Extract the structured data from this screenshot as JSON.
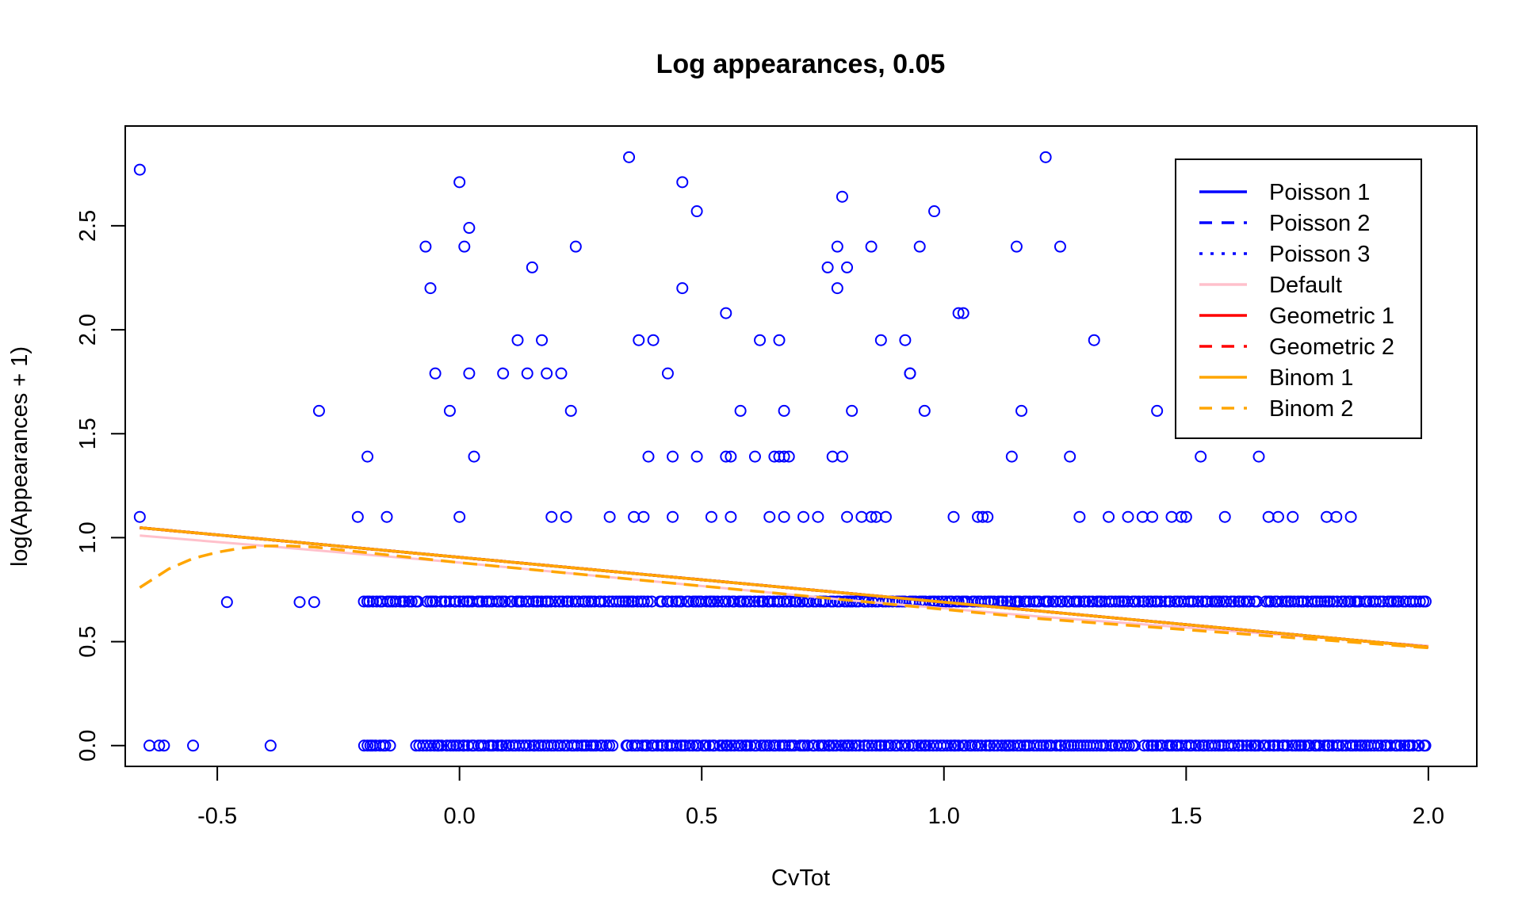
{
  "chart_data": {
    "type": "scatter",
    "title": "Log appearances,  0.05",
    "xlabel": "CvTot",
    "ylabel": "log(Appearances + 1)",
    "xlim": [
      -0.69,
      2.1
    ],
    "ylim": [
      -0.1,
      2.98
    ],
    "xticks": [
      -0.5,
      0.0,
      0.5,
      1.0,
      1.5,
      2.0
    ],
    "xtick_labels": [
      "-0.5",
      "0.0",
      "0.5",
      "1.0",
      "1.5",
      "2.0"
    ],
    "yticks": [
      0.0,
      0.5,
      1.0,
      1.5,
      2.0,
      2.5
    ],
    "ytick_labels": [
      "0.0",
      "0.5",
      "1.0",
      "1.5",
      "2.0",
      "2.5"
    ],
    "grid": false,
    "legend_position": "top-right",
    "point_color": "#0000ff",
    "points": [
      [
        -0.66,
        2.77
      ],
      [
        -0.66,
        1.1
      ],
      [
        -0.64,
        0.0
      ],
      [
        -0.62,
        0.0
      ],
      [
        -0.61,
        0.0
      ],
      [
        -0.55,
        0.0
      ],
      [
        -0.48,
        0.69
      ],
      [
        -0.39,
        0.0
      ],
      [
        -0.33,
        0.69
      ],
      [
        -0.3,
        0.69
      ],
      [
        -0.29,
        1.61
      ],
      [
        -0.21,
        1.1
      ],
      [
        -0.19,
        1.39
      ],
      [
        -0.15,
        1.1
      ],
      [
        -0.07,
        2.4
      ],
      [
        -0.06,
        2.2
      ],
      [
        -0.05,
        1.79
      ],
      [
        -0.02,
        1.61
      ],
      [
        0.0,
        2.71
      ],
      [
        0.0,
        1.1
      ],
      [
        0.01,
        2.4
      ],
      [
        0.02,
        2.49
      ],
      [
        0.02,
        1.79
      ],
      [
        0.03,
        1.39
      ],
      [
        0.09,
        1.79
      ],
      [
        0.12,
        1.95
      ],
      [
        0.14,
        1.79
      ],
      [
        0.15,
        2.3
      ],
      [
        0.17,
        1.95
      ],
      [
        0.18,
        1.79
      ],
      [
        0.19,
        1.1
      ],
      [
        0.21,
        1.79
      ],
      [
        0.22,
        1.1
      ],
      [
        0.23,
        1.61
      ],
      [
        0.24,
        2.4
      ],
      [
        0.31,
        1.1
      ],
      [
        0.35,
        2.83
      ],
      [
        0.36,
        1.1
      ],
      [
        0.37,
        1.95
      ],
      [
        0.38,
        1.1
      ],
      [
        0.39,
        1.39
      ],
      [
        0.4,
        1.95
      ],
      [
        0.43,
        1.79
      ],
      [
        0.44,
        1.39
      ],
      [
        0.44,
        1.1
      ],
      [
        0.46,
        2.71
      ],
      [
        0.46,
        2.2
      ],
      [
        0.49,
        2.57
      ],
      [
        0.49,
        1.39
      ],
      [
        0.52,
        1.1
      ],
      [
        0.55,
        2.08
      ],
      [
        0.55,
        1.39
      ],
      [
        0.56,
        1.39
      ],
      [
        0.56,
        1.1
      ],
      [
        0.58,
        1.61
      ],
      [
        0.61,
        1.39
      ],
      [
        0.62,
        1.95
      ],
      [
        0.64,
        1.1
      ],
      [
        0.65,
        1.39
      ],
      [
        0.66,
        1.39
      ],
      [
        0.66,
        1.95
      ],
      [
        0.67,
        1.1
      ],
      [
        0.67,
        1.61
      ],
      [
        0.67,
        1.39
      ],
      [
        0.68,
        1.39
      ],
      [
        0.71,
        1.1
      ],
      [
        0.74,
        1.1
      ],
      [
        0.76,
        2.3
      ],
      [
        0.77,
        1.39
      ],
      [
        0.78,
        2.4
      ],
      [
        0.78,
        2.2
      ],
      [
        0.79,
        1.39
      ],
      [
        0.79,
        2.64
      ],
      [
        0.8,
        2.3
      ],
      [
        0.8,
        1.1
      ],
      [
        0.81,
        1.61
      ],
      [
        0.83,
        1.1
      ],
      [
        0.85,
        2.4
      ],
      [
        0.85,
        1.1
      ],
      [
        0.86,
        1.1
      ],
      [
        0.87,
        1.95
      ],
      [
        0.88,
        1.1
      ],
      [
        0.92,
        1.95
      ],
      [
        0.93,
        1.79
      ],
      [
        0.93,
        1.79
      ],
      [
        0.95,
        2.4
      ],
      [
        0.96,
        1.61
      ],
      [
        0.98,
        2.57
      ],
      [
        1.02,
        1.1
      ],
      [
        1.03,
        2.08
      ],
      [
        1.04,
        2.08
      ],
      [
        1.07,
        1.1
      ],
      [
        1.08,
        1.1
      ],
      [
        1.09,
        1.1
      ],
      [
        1.14,
        1.39
      ],
      [
        1.15,
        2.4
      ],
      [
        1.16,
        1.61
      ],
      [
        1.21,
        2.83
      ],
      [
        1.24,
        2.4
      ],
      [
        1.26,
        1.39
      ],
      [
        1.28,
        1.1
      ],
      [
        1.31,
        1.95
      ],
      [
        1.34,
        1.1
      ],
      [
        1.38,
        1.1
      ],
      [
        1.41,
        1.1
      ],
      [
        1.43,
        1.1
      ],
      [
        1.44,
        1.61
      ],
      [
        1.47,
        1.1
      ],
      [
        1.49,
        1.1
      ],
      [
        1.5,
        1.1
      ],
      [
        1.53,
        1.39
      ],
      [
        1.58,
        1.1
      ],
      [
        1.65,
        1.39
      ],
      [
        1.67,
        1.1
      ],
      [
        1.69,
        1.1
      ],
      [
        1.72,
        1.1
      ],
      [
        1.79,
        1.1
      ],
      [
        1.81,
        1.1
      ],
      [
        1.84,
        1.1
      ]
    ],
    "dense_rows": [
      {
        "y": 0.693,
        "ranges": [
          [
            -0.2,
            -0.08
          ],
          [
            -0.07,
            0.4
          ],
          [
            0.41,
            1.65
          ],
          [
            1.66,
            2.0
          ]
        ],
        "count": 320
      },
      {
        "y": 0.0,
        "ranges": [
          [
            -0.2,
            -0.14
          ],
          [
            -0.09,
            0.32
          ],
          [
            0.34,
            1.4
          ],
          [
            1.41,
            2.0
          ]
        ],
        "count": 320
      }
    ],
    "series": [
      {
        "name": "Poisson 1",
        "color": "#0000ff",
        "dash": "solid",
        "x": [
          -0.66,
          2.0
        ],
        "y": [
          1.048,
          0.474
        ]
      },
      {
        "name": "Poisson 2",
        "color": "#0000ff",
        "dash": "dashed",
        "x": [
          -0.66,
          2.0
        ],
        "y": [
          1.048,
          0.474
        ]
      },
      {
        "name": "Poisson 3",
        "color": "#0000ff",
        "dash": "dotted",
        "x": [
          -0.66,
          2.0
        ],
        "y": [
          1.048,
          0.474
        ]
      },
      {
        "name": "Default",
        "color": "#ffc0cb",
        "dash": "solid",
        "x": [
          -0.66,
          -0.4,
          0.0,
          0.4,
          0.8,
          1.2,
          1.6,
          2.0
        ],
        "y": [
          1.01,
          0.96,
          0.88,
          0.79,
          0.7,
          0.62,
          0.55,
          0.48
        ]
      },
      {
        "name": "Geometric 1",
        "color": "#ff0000",
        "dash": "solid",
        "x": [
          -0.66,
          2.0
        ],
        "y": [
          1.048,
          0.474
        ]
      },
      {
        "name": "Geometric 2",
        "color": "#ff0000",
        "dash": "dashed",
        "x": [
          -0.66,
          2.0
        ],
        "y": [
          1.048,
          0.474
        ]
      },
      {
        "name": "Binom 1",
        "color": "#ffa500",
        "dash": "solid",
        "x": [
          -0.66,
          2.0
        ],
        "y": [
          1.048,
          0.474
        ]
      },
      {
        "name": "Binom 2",
        "color": "#ffa500",
        "dash": "dashed",
        "x": [
          -0.66,
          -0.6,
          -0.55,
          -0.5,
          -0.45,
          -0.4,
          -0.35,
          -0.3,
          -0.2,
          0.0,
          0.4,
          0.8,
          1.2,
          1.6,
          2.0
        ],
        "y": [
          0.76,
          0.85,
          0.9,
          0.93,
          0.95,
          0.96,
          0.96,
          0.955,
          0.93,
          0.88,
          0.79,
          0.7,
          0.61,
          0.54,
          0.47
        ]
      }
    ]
  }
}
